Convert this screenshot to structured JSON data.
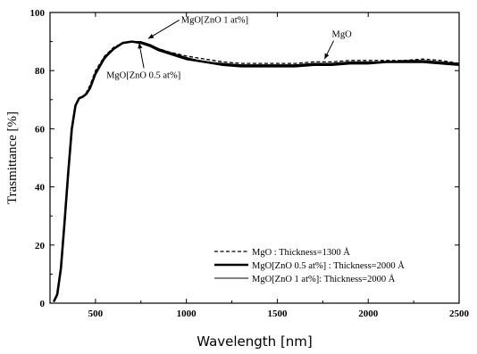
{
  "chart_data": {
    "type": "line",
    "xlabel": "Wavelength [nm]",
    "ylabel": "Trasmittance [%]",
    "xlim": [
      250,
      2500
    ],
    "ylim": [
      0,
      100
    ],
    "xticks": [
      500,
      1000,
      1500,
      2000,
      2500
    ],
    "yticks": [
      0,
      20,
      40,
      60,
      80,
      100
    ],
    "grid": false,
    "legend_position": "bottom-right",
    "series": [
      {
        "name": "MgO : Thickness=1300 Å",
        "style": "dashed",
        "x": [
          270,
          290,
          310,
          330,
          350,
          370,
          390,
          410,
          430,
          450,
          470,
          500,
          550,
          600,
          650,
          700,
          750,
          800,
          850,
          900,
          1000,
          1100,
          1200,
          1300,
          1400,
          1500,
          1600,
          1700,
          1800,
          1900,
          2000,
          2100,
          2200,
          2300,
          2400,
          2500
        ],
        "y": [
          0.5,
          3,
          12,
          28,
          45,
          60,
          68,
          70.5,
          71,
          72.5,
          75,
          80,
          85,
          88,
          89.5,
          90,
          89.5,
          88.5,
          87.5,
          86.5,
          85,
          84,
          83,
          82.5,
          82.5,
          82.5,
          82.5,
          83,
          83,
          83.5,
          83.5,
          83.5,
          83.5,
          84,
          83.5,
          82.5
        ]
      },
      {
        "name": "MgO[ZnO 0.5 at%] : Thickness=2000 Å",
        "style": "solid-thick",
        "x": [
          270,
          290,
          310,
          330,
          350,
          370,
          390,
          410,
          430,
          450,
          470,
          500,
          550,
          600,
          650,
          700,
          750,
          800,
          850,
          900,
          1000,
          1100,
          1200,
          1300,
          1400,
          1500,
          1600,
          1700,
          1800,
          1900,
          2000,
          2100,
          2200,
          2300,
          2400,
          2500
        ],
        "y": [
          0.5,
          3,
          12,
          28,
          45,
          60,
          68,
          70.5,
          71,
          72,
          74,
          79,
          84.5,
          87.5,
          89.5,
          90,
          89.5,
          88.5,
          87,
          86,
          84,
          83,
          82,
          81.5,
          81.5,
          81.5,
          81.5,
          82,
          82,
          82.5,
          82.5,
          83,
          83,
          83,
          82.5,
          82
        ]
      },
      {
        "name": "MgO[ZnO 1 at%]: Thickness=2000 Å",
        "style": "solid-thin",
        "x": [
          270,
          290,
          310,
          330,
          350,
          370,
          390,
          410,
          430,
          450,
          470,
          500,
          550,
          600,
          650,
          700,
          750,
          800,
          850,
          900,
          1000,
          1100,
          1200,
          1300,
          1400,
          1500,
          1600,
          1700,
          1800,
          1900,
          2000,
          2100,
          2200,
          2300,
          2400,
          2500
        ],
        "y": [
          0.5,
          3,
          12,
          28,
          45,
          60,
          68,
          70.5,
          71,
          72,
          74,
          78.5,
          84,
          87.5,
          89.5,
          90,
          90,
          89,
          87.5,
          86.5,
          84.5,
          83,
          82.5,
          82,
          82,
          82,
          82,
          82.5,
          82.5,
          83,
          83,
          83,
          83.5,
          83.5,
          83,
          82.5
        ]
      }
    ],
    "annotations": [
      {
        "text": "MgO[ZnO 1 at%]",
        "x": 1020,
        "y": 96.5,
        "arrow_to": [
          790,
          91
        ]
      },
      {
        "text": "MgO",
        "x": 1800,
        "y": 91.5,
        "arrow_to": [
          1760,
          84
        ]
      },
      {
        "text": "MgO[ZnO 0.5 at%]",
        "x": 560,
        "y": 77.5,
        "arrow_to": [
          740,
          89.5
        ]
      }
    ]
  }
}
